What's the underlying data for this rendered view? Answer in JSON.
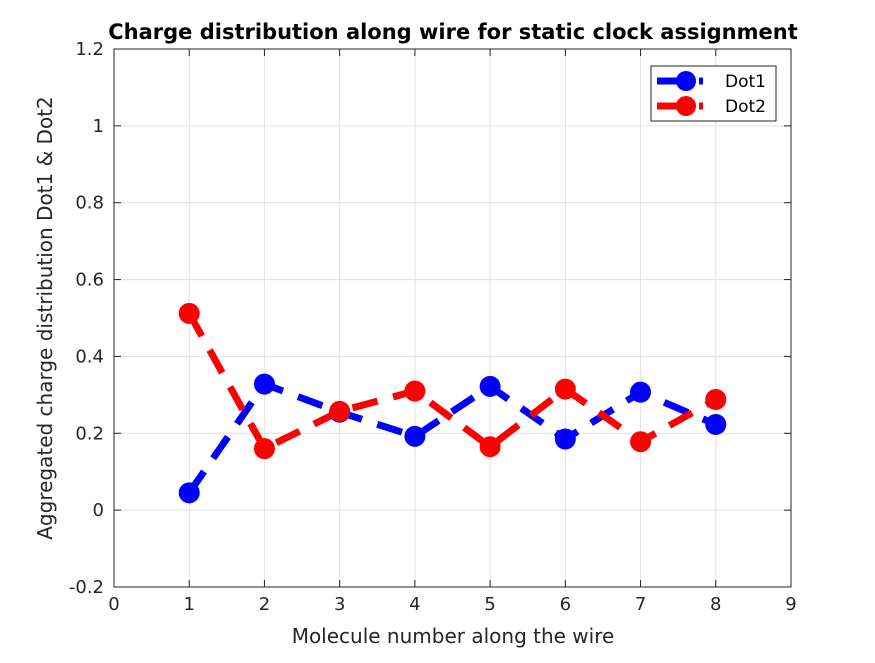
{
  "chart_data": {
    "type": "line",
    "title": "Charge distribution along wire for static clock assignment",
    "xlabel": "Molecule number along the wire",
    "ylabel": "Aggregated charge distribution Dot1 & Dot2",
    "xlim": [
      0,
      9
    ],
    "ylim": [
      -0.2,
      1.2
    ],
    "xticks": [
      "0",
      "1",
      "2",
      "3",
      "4",
      "5",
      "6",
      "7",
      "8",
      "9"
    ],
    "yticks": [
      "-0.2",
      "0",
      "0.2",
      "0.4",
      "0.6",
      "0.8",
      "1",
      "1.2"
    ],
    "grid": true,
    "legend_position": "top-right",
    "x": [
      1,
      2,
      3,
      4,
      5,
      6,
      7,
      8
    ],
    "series": [
      {
        "name": "Dot1",
        "color": "#0000ff",
        "line_style": "dashed",
        "marker": "circle",
        "values": [
          0.045,
          0.328,
          0.255,
          0.192,
          0.322,
          0.185,
          0.307,
          0.223
        ]
      },
      {
        "name": "Dot2",
        "color": "#ff0000",
        "line_style": "dashed",
        "marker": "circle",
        "values": [
          0.512,
          0.16,
          0.257,
          0.31,
          0.165,
          0.315,
          0.178,
          0.288
        ]
      }
    ]
  }
}
